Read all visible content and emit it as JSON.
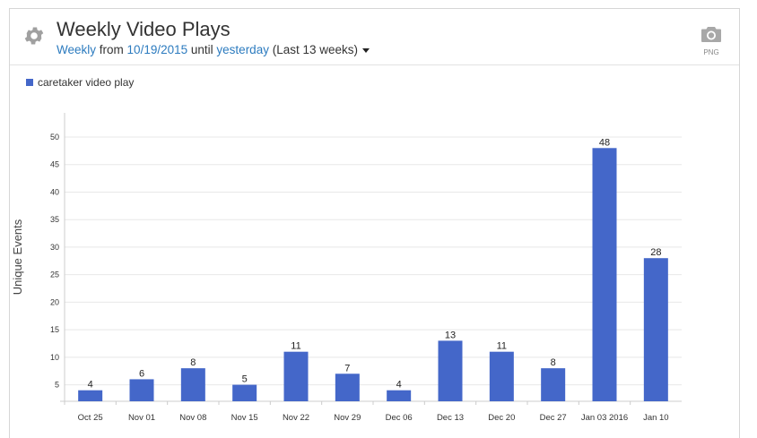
{
  "header": {
    "title": "Weekly Video Plays",
    "interval": "Weekly",
    "from_word": "from",
    "start_date": "10/19/2015",
    "until_word": "until",
    "end": "yesterday",
    "range_note": "(Last 13 weeks)",
    "export_label": "PNG"
  },
  "icons": {
    "settings": "gear-icon",
    "export": "camera-icon",
    "dropdown": "caret-down-icon"
  },
  "colors": {
    "bar": "#4467c9",
    "link": "#2c7bbf"
  },
  "chart_data": {
    "type": "bar",
    "title": "Weekly Video Plays",
    "ylabel": "Unique Events",
    "xlabel": "",
    "categories": [
      "Oct 25",
      "Nov 01",
      "Nov 08",
      "Nov 15",
      "Nov 22",
      "Nov 29",
      "Dec 06",
      "Dec 13",
      "Dec 20",
      "Dec 27",
      "Jan 03 2016",
      "Jan 10"
    ],
    "series": [
      {
        "name": "caretaker video play",
        "values": [
          4,
          6,
          8,
          5,
          11,
          7,
          4,
          13,
          11,
          8,
          48,
          28
        ]
      }
    ],
    "yticks": [
      5,
      10,
      15,
      20,
      25,
      30,
      35,
      40,
      45,
      50
    ],
    "ylim": [
      2,
      55
    ],
    "grid": true,
    "legend": "top-left",
    "data_labels": true
  }
}
